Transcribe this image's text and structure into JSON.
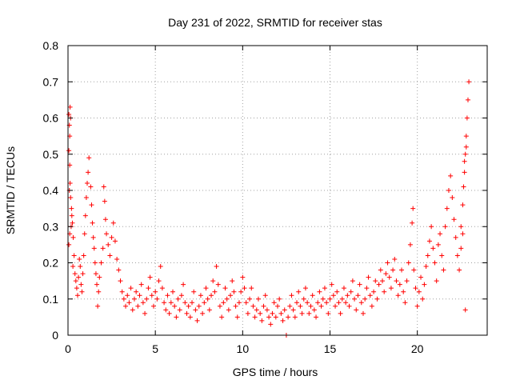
{
  "chart_data": {
    "type": "scatter",
    "title": "Day 231 of 2022, SRMTID for receiver stas",
    "xlabel": "GPS time / hours",
    "ylabel": "SRMTID / TECUs",
    "xlim": [
      0,
      24
    ],
    "ylim": [
      0,
      0.8
    ],
    "xticks": [
      0,
      5,
      10,
      15,
      20
    ],
    "yticks": [
      0,
      0.1,
      0.2,
      0.3,
      0.4,
      0.5,
      0.6,
      0.7,
      0.8
    ],
    "xtick_labels": [
      "0",
      "5",
      "10",
      "15",
      "20"
    ],
    "ytick_labels": [
      "0",
      "0.1",
      "0.2",
      "0.3",
      "0.4",
      "0.5",
      "0.6",
      "0.7",
      "0.8"
    ],
    "grid": true,
    "marker": "+",
    "color": "#ff0000",
    "series": [
      {
        "name": "SRMTID",
        "points": [
          [
            0.05,
            0.61
          ],
          [
            0.08,
            0.58
          ],
          [
            0.1,
            0.55
          ],
          [
            0.12,
            0.63
          ],
          [
            0.15,
            0.6
          ],
          [
            0.05,
            0.51
          ],
          [
            0.1,
            0.47
          ],
          [
            0.12,
            0.42
          ],
          [
            0.08,
            0.4
          ],
          [
            0.15,
            0.38
          ],
          [
            0.2,
            0.35
          ],
          [
            0.22,
            0.33
          ],
          [
            0.18,
            0.3
          ],
          [
            0.25,
            0.31
          ],
          [
            0.05,
            0.25
          ],
          [
            0.1,
            0.28
          ],
          [
            0.3,
            0.27
          ],
          [
            0.35,
            0.22
          ],
          [
            0.28,
            0.19
          ],
          [
            0.4,
            0.17
          ],
          [
            0.45,
            0.15
          ],
          [
            0.5,
            0.13
          ],
          [
            0.55,
            0.11
          ],
          [
            0.6,
            0.16
          ],
          [
            0.65,
            0.21
          ],
          [
            0.7,
            0.19
          ],
          [
            0.75,
            0.14
          ],
          [
            0.8,
            0.12
          ],
          [
            0.85,
            0.17
          ],
          [
            0.9,
            0.22
          ],
          [
            0.95,
            0.28
          ],
          [
            1.0,
            0.33
          ],
          [
            1.05,
            0.38
          ],
          [
            1.1,
            0.42
          ],
          [
            1.15,
            0.45
          ],
          [
            1.2,
            0.49
          ],
          [
            1.3,
            0.41
          ],
          [
            1.35,
            0.36
          ],
          [
            1.4,
            0.31
          ],
          [
            1.45,
            0.27
          ],
          [
            1.5,
            0.24
          ],
          [
            1.55,
            0.2
          ],
          [
            1.6,
            0.17
          ],
          [
            1.65,
            0.14
          ],
          [
            1.7,
            0.08
          ],
          [
            1.75,
            0.12
          ],
          [
            1.8,
            0.16
          ],
          [
            1.9,
            0.2
          ],
          [
            2.0,
            0.24
          ],
          [
            2.05,
            0.41
          ],
          [
            2.1,
            0.37
          ],
          [
            2.15,
            0.32
          ],
          [
            2.2,
            0.28
          ],
          [
            2.3,
            0.25
          ],
          [
            2.4,
            0.22
          ],
          [
            2.5,
            0.27
          ],
          [
            2.6,
            0.31
          ],
          [
            2.7,
            0.26
          ],
          [
            2.8,
            0.21
          ],
          [
            2.9,
            0.18
          ],
          [
            3.0,
            0.15
          ],
          [
            3.1,
            0.12
          ],
          [
            3.2,
            0.1
          ],
          [
            3.3,
            0.08
          ],
          [
            3.4,
            0.11
          ],
          [
            3.5,
            0.09
          ],
          [
            3.6,
            0.13
          ],
          [
            3.7,
            0.07
          ],
          [
            3.8,
            0.1
          ],
          [
            3.9,
            0.12
          ],
          [
            4.0,
            0.08
          ],
          [
            4.1,
            0.11
          ],
          [
            4.2,
            0.14
          ],
          [
            4.3,
            0.09
          ],
          [
            4.4,
            0.06
          ],
          [
            4.5,
            0.1
          ],
          [
            4.6,
            0.13
          ],
          [
            4.7,
            0.16
          ],
          [
            4.8,
            0.11
          ],
          [
            4.9,
            0.08
          ],
          [
            5.0,
            0.12
          ],
          [
            5.1,
            0.1
          ],
          [
            5.2,
            0.15
          ],
          [
            5.3,
            0.19
          ],
          [
            5.4,
            0.13
          ],
          [
            5.5,
            0.09
          ],
          [
            5.6,
            0.07
          ],
          [
            5.7,
            0.11
          ],
          [
            5.8,
            0.06
          ],
          [
            5.9,
            0.09
          ],
          [
            6.0,
            0.12
          ],
          [
            6.1,
            0.08
          ],
          [
            6.2,
            0.05
          ],
          [
            6.3,
            0.1
          ],
          [
            6.4,
            0.07
          ],
          [
            6.5,
            0.11
          ],
          [
            6.6,
            0.14
          ],
          [
            6.7,
            0.09
          ],
          [
            6.8,
            0.06
          ],
          [
            6.9,
            0.08
          ],
          [
            7.0,
            0.05
          ],
          [
            7.1,
            0.09
          ],
          [
            7.2,
            0.12
          ],
          [
            7.3,
            0.07
          ],
          [
            7.4,
            0.04
          ],
          [
            7.5,
            0.08
          ],
          [
            7.6,
            0.11
          ],
          [
            7.7,
            0.06
          ],
          [
            7.8,
            0.09
          ],
          [
            7.9,
            0.13
          ],
          [
            8.0,
            0.1
          ],
          [
            8.1,
            0.07
          ],
          [
            8.2,
            0.11
          ],
          [
            8.3,
            0.15
          ],
          [
            8.4,
            0.12
          ],
          [
            8.5,
            0.19
          ],
          [
            8.6,
            0.14
          ],
          [
            8.7,
            0.08
          ],
          [
            8.8,
            0.05
          ],
          [
            8.9,
            0.09
          ],
          [
            9.0,
            0.13
          ],
          [
            9.1,
            0.1
          ],
          [
            9.2,
            0.07
          ],
          [
            9.3,
            0.11
          ],
          [
            9.4,
            0.15
          ],
          [
            9.5,
            0.12
          ],
          [
            9.6,
            0.08
          ],
          [
            9.7,
            0.05
          ],
          [
            9.8,
            0.09
          ],
          [
            9.9,
            0.12
          ],
          [
            10.0,
            0.16
          ],
          [
            10.1,
            0.13
          ],
          [
            10.2,
            0.09
          ],
          [
            10.3,
            0.06
          ],
          [
            10.4,
            0.1
          ],
          [
            10.5,
            0.13
          ],
          [
            10.6,
            0.08
          ],
          [
            10.7,
            0.05
          ],
          [
            10.8,
            0.07
          ],
          [
            10.9,
            0.1
          ],
          [
            11.0,
            0.06
          ],
          [
            11.1,
            0.04
          ],
          [
            11.2,
            0.08
          ],
          [
            11.3,
            0.11
          ],
          [
            11.4,
            0.07
          ],
          [
            11.5,
            0.05
          ],
          [
            11.6,
            0.03
          ],
          [
            11.7,
            0.06
          ],
          [
            11.8,
            0.09
          ],
          [
            11.9,
            0.05
          ],
          [
            12.0,
            0.08
          ],
          [
            12.1,
            0.1
          ],
          [
            12.2,
            0.06
          ],
          [
            12.3,
            0.04
          ],
          [
            12.4,
            0.07
          ],
          [
            12.5,
            0.0
          ],
          [
            12.6,
            0.05
          ],
          [
            12.7,
            0.08
          ],
          [
            12.8,
            0.11
          ],
          [
            12.9,
            0.07
          ],
          [
            13.0,
            0.05
          ],
          [
            13.1,
            0.09
          ],
          [
            13.2,
            0.12
          ],
          [
            13.3,
            0.08
          ],
          [
            13.4,
            0.06
          ],
          [
            13.5,
            0.1
          ],
          [
            13.6,
            0.13
          ],
          [
            13.7,
            0.09
          ],
          [
            13.8,
            0.06
          ],
          [
            13.9,
            0.08
          ],
          [
            14.0,
            0.11
          ],
          [
            14.1,
            0.07
          ],
          [
            14.2,
            0.05
          ],
          [
            14.3,
            0.09
          ],
          [
            14.4,
            0.12
          ],
          [
            14.5,
            0.08
          ],
          [
            14.6,
            0.1
          ],
          [
            14.7,
            0.13
          ],
          [
            14.8,
            0.09
          ],
          [
            14.9,
            0.06
          ],
          [
            15.0,
            0.1
          ],
          [
            15.1,
            0.14
          ],
          [
            15.2,
            0.11
          ],
          [
            15.3,
            0.08
          ],
          [
            15.4,
            0.12
          ],
          [
            15.5,
            0.09
          ],
          [
            15.6,
            0.06
          ],
          [
            15.7,
            0.1
          ],
          [
            15.8,
            0.13
          ],
          [
            15.9,
            0.09
          ],
          [
            16.0,
            0.11
          ],
          [
            16.1,
            0.08
          ],
          [
            16.2,
            0.12
          ],
          [
            16.3,
            0.15
          ],
          [
            16.4,
            0.1
          ],
          [
            16.5,
            0.07
          ],
          [
            16.6,
            0.11
          ],
          [
            16.7,
            0.14
          ],
          [
            16.8,
            0.09
          ],
          [
            16.9,
            0.06
          ],
          [
            17.0,
            0.1
          ],
          [
            17.1,
            0.13
          ],
          [
            17.2,
            0.16
          ],
          [
            17.3,
            0.11
          ],
          [
            17.4,
            0.08
          ],
          [
            17.5,
            0.12
          ],
          [
            17.6,
            0.15
          ],
          [
            17.7,
            0.1
          ],
          [
            17.8,
            0.14
          ],
          [
            17.9,
            0.18
          ],
          [
            18.0,
            0.15
          ],
          [
            18.1,
            0.12
          ],
          [
            18.2,
            0.17
          ],
          [
            18.3,
            0.2
          ],
          [
            18.4,
            0.16
          ],
          [
            18.5,
            0.13
          ],
          [
            18.6,
            0.18
          ],
          [
            18.7,
            0.21
          ],
          [
            18.8,
            0.15
          ],
          [
            18.9,
            0.11
          ],
          [
            19.0,
            0.14
          ],
          [
            19.1,
            0.18
          ],
          [
            19.2,
            0.12
          ],
          [
            19.3,
            0.09
          ],
          [
            19.4,
            0.15
          ],
          [
            19.5,
            0.2
          ],
          [
            19.6,
            0.25
          ],
          [
            19.7,
            0.31
          ],
          [
            19.75,
            0.35
          ],
          [
            19.8,
            0.18
          ],
          [
            19.9,
            0.13
          ],
          [
            20.0,
            0.08
          ],
          [
            20.1,
            0.12
          ],
          [
            20.2,
            0.16
          ],
          [
            20.3,
            0.1
          ],
          [
            20.4,
            0.14
          ],
          [
            20.5,
            0.19
          ],
          [
            20.6,
            0.22
          ],
          [
            20.7,
            0.26
          ],
          [
            20.8,
            0.3
          ],
          [
            20.9,
            0.24
          ],
          [
            21.0,
            0.2
          ],
          [
            21.1,
            0.15
          ],
          [
            21.2,
            0.25
          ],
          [
            21.3,
            0.28
          ],
          [
            21.4,
            0.22
          ],
          [
            21.5,
            0.18
          ],
          [
            21.6,
            0.3
          ],
          [
            21.7,
            0.35
          ],
          [
            21.8,
            0.4
          ],
          [
            21.9,
            0.44
          ],
          [
            22.0,
            0.38
          ],
          [
            22.1,
            0.32
          ],
          [
            22.2,
            0.27
          ],
          [
            22.3,
            0.22
          ],
          [
            22.4,
            0.18
          ],
          [
            22.5,
            0.3
          ],
          [
            22.6,
            0.36
          ],
          [
            22.65,
            0.41
          ],
          [
            22.7,
            0.45
          ],
          [
            22.75,
            0.5
          ],
          [
            22.8,
            0.55
          ],
          [
            22.85,
            0.6
          ],
          [
            22.9,
            0.65
          ],
          [
            22.95,
            0.7
          ],
          [
            22.8,
            0.52
          ],
          [
            22.7,
            0.48
          ],
          [
            22.75,
            0.07
          ],
          [
            22.6,
            0.28
          ],
          [
            22.5,
            0.24
          ]
        ]
      }
    ]
  }
}
